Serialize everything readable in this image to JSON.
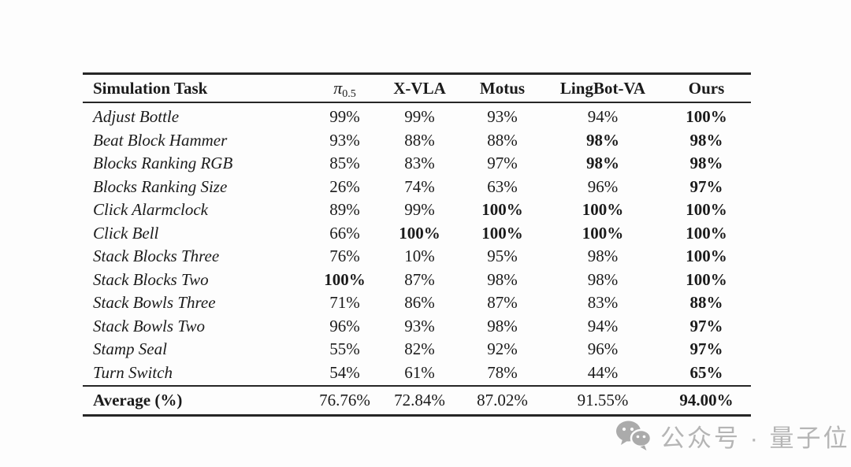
{
  "table": {
    "columns": [
      {
        "label": "Simulation Task"
      },
      {
        "label": "π",
        "sub": "0.5"
      },
      {
        "label": "X-VLA"
      },
      {
        "label": "Motus"
      },
      {
        "label": "LingBot-VA"
      },
      {
        "label": "Ours"
      }
    ],
    "rows": [
      {
        "task": "Adjust Bottle",
        "values": [
          "99%",
          "99%",
          "93%",
          "94%",
          "100%"
        ],
        "bold": [
          false,
          false,
          false,
          false,
          true
        ]
      },
      {
        "task": "Beat Block Hammer",
        "values": [
          "93%",
          "88%",
          "88%",
          "98%",
          "98%"
        ],
        "bold": [
          false,
          false,
          false,
          true,
          true
        ]
      },
      {
        "task": "Blocks Ranking RGB",
        "values": [
          "85%",
          "83%",
          "97%",
          "98%",
          "98%"
        ],
        "bold": [
          false,
          false,
          false,
          true,
          true
        ]
      },
      {
        "task": "Blocks Ranking Size",
        "values": [
          "26%",
          "74%",
          "63%",
          "96%",
          "97%"
        ],
        "bold": [
          false,
          false,
          false,
          false,
          true
        ]
      },
      {
        "task": "Click Alarmclock",
        "values": [
          "89%",
          "99%",
          "100%",
          "100%",
          "100%"
        ],
        "bold": [
          false,
          false,
          true,
          true,
          true
        ]
      },
      {
        "task": "Click Bell",
        "values": [
          "66%",
          "100%",
          "100%",
          "100%",
          "100%"
        ],
        "bold": [
          false,
          true,
          true,
          true,
          true
        ]
      },
      {
        "task": "Stack Blocks Three",
        "values": [
          "76%",
          "10%",
          "95%",
          "98%",
          "100%"
        ],
        "bold": [
          false,
          false,
          false,
          false,
          true
        ]
      },
      {
        "task": "Stack Blocks Two",
        "values": [
          "100%",
          "87%",
          "98%",
          "98%",
          "100%"
        ],
        "bold": [
          true,
          false,
          false,
          false,
          true
        ]
      },
      {
        "task": "Stack Bowls Three",
        "values": [
          "71%",
          "86%",
          "87%",
          "83%",
          "88%"
        ],
        "bold": [
          false,
          false,
          false,
          false,
          true
        ]
      },
      {
        "task": "Stack Bowls Two",
        "values": [
          "96%",
          "93%",
          "98%",
          "94%",
          "97%"
        ],
        "bold": [
          false,
          false,
          false,
          false,
          true
        ]
      },
      {
        "task": "Stamp Seal",
        "values": [
          "55%",
          "82%",
          "92%",
          "96%",
          "97%"
        ],
        "bold": [
          false,
          false,
          false,
          false,
          true
        ]
      },
      {
        "task": "Turn Switch",
        "values": [
          "54%",
          "61%",
          "78%",
          "44%",
          "65%"
        ],
        "bold": [
          false,
          false,
          false,
          false,
          true
        ]
      }
    ],
    "footer": {
      "label": "Average (%)",
      "values": [
        "76.76%",
        "72.84%",
        "87.02%",
        "91.55%",
        "94.00%"
      ],
      "bold": [
        false,
        false,
        false,
        false,
        true
      ]
    }
  },
  "watermark": {
    "text": "公众号 · 量子位"
  },
  "colors": {
    "text": "#1b1b1b",
    "rule": "#262626",
    "watermark": "#b5b5b5",
    "background": "#fdfdfd"
  }
}
